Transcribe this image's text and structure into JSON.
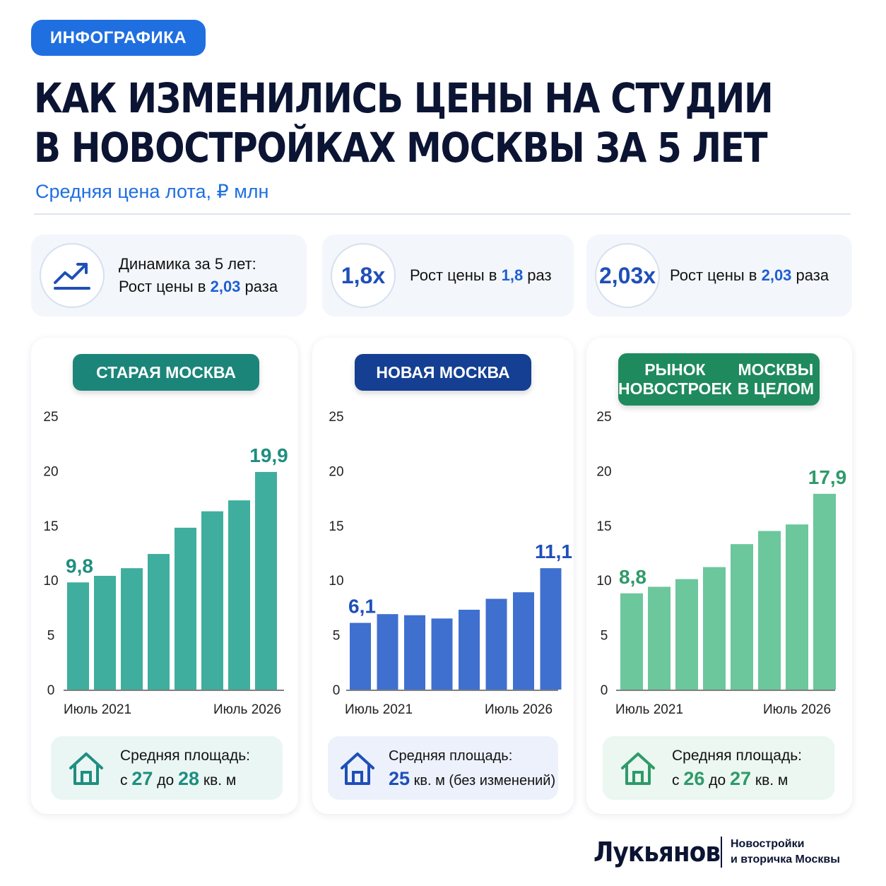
{
  "header": {
    "badge": "ИНФОГРАФИКА",
    "title_line1": "КАК ИЗМЕНИЛИСЬ ЦЕНЫ НА СТУДИИ",
    "title_line2": "В НОВОСТРОЙКАХ МОСКВЫ ЗА 5 ЛЕТ",
    "subtitle": "Средняя цена лота, ₽ млн"
  },
  "stats": [
    {
      "icon": "trend-up-icon",
      "line1": "Динамика за 5 лет:",
      "line2_prefix": "Рост цены в ",
      "value": "2,03",
      "line2_suffix": " раза"
    },
    {
      "badge": "1,8x",
      "prefix": "Рост цены в ",
      "value": "1,8",
      "suffix": " раз"
    },
    {
      "badge": "2,03x",
      "prefix": "Рост цены в ",
      "value": "2,03",
      "suffix": " раза"
    }
  ],
  "colors": {
    "teal": "#3fae9e",
    "teal_dark": "#1f8e80",
    "blue": "#3f70cf",
    "blue_dark": "#1f4fb8",
    "green": "#6cc79c",
    "green_dark": "#2f9a6a",
    "pill_teal": "#1c857a",
    "pill_blue": "#143f92",
    "pill_green": "#1f8a5e"
  },
  "chart_data": [
    {
      "type": "bar",
      "title": "СТАРАЯ МОСКВА",
      "values": [
        9.8,
        10.4,
        11.1,
        12.4,
        14.8,
        16.3,
        17.3,
        19.9
      ],
      "x_labels": [
        "Июль 2021",
        "Июль 2026"
      ],
      "yticks": [
        0,
        5,
        10,
        15,
        20,
        25
      ],
      "ylim": [
        0,
        25
      ],
      "annotations": [
        {
          "index": 0,
          "label": "9,8"
        },
        {
          "index": 7,
          "label": "19,9"
        }
      ],
      "grid": false,
      "footer": {
        "line1": "Средняя площадь:",
        "from_word": "с ",
        "from": "27",
        "mid": " до ",
        "to": "28",
        "unit": " кв. м"
      }
    },
    {
      "type": "bar",
      "title": "НОВАЯ МОСКВА",
      "values": [
        6.1,
        6.9,
        6.8,
        6.5,
        7.3,
        8.3,
        8.9,
        11.1
      ],
      "x_labels": [
        "Июль 2021",
        "Июль 2026"
      ],
      "yticks": [
        0,
        5,
        10,
        15,
        20,
        25
      ],
      "ylim": [
        0,
        25
      ],
      "annotations": [
        {
          "index": 0,
          "label": "6,1"
        },
        {
          "index": 7,
          "label": "11,1"
        }
      ],
      "grid": false,
      "footer": {
        "line1": "Средняя площадь:",
        "value": "25",
        "rest": " кв. м (без изменений)"
      }
    },
    {
      "type": "bar",
      "title_line1": "РЫНОК НОВОСТРОЕК",
      "title_line2": "МОСКВЫ В ЦЕЛОМ",
      "values": [
        8.8,
        9.4,
        10.1,
        11.2,
        13.3,
        14.5,
        15.1,
        17.9
      ],
      "x_labels": [
        "Июль 2021",
        "Июль 2026"
      ],
      "yticks": [
        0,
        5,
        10,
        15,
        20,
        25
      ],
      "ylim": [
        0,
        25
      ],
      "annotations": [
        {
          "index": 0,
          "label": "8,8"
        },
        {
          "index": 7,
          "label": "17,9"
        }
      ],
      "grid": false,
      "footer": {
        "line1": "Средняя площадь:",
        "from_word": "с ",
        "from": "26",
        "mid": " до ",
        "to": "27",
        "unit": " кв. м"
      }
    }
  ],
  "footer": {
    "brand": "Лукьянов",
    "tag_line1": "Новостройки",
    "tag_line2": "и вторичка Москвы"
  }
}
